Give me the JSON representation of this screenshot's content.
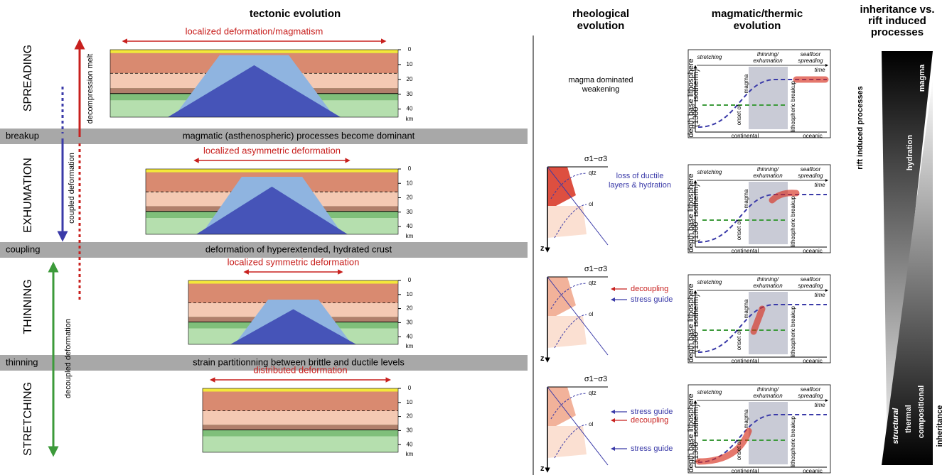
{
  "header": {
    "tectonic": "tectonic evolution",
    "rheological": [
      "rheological",
      "evolution"
    ],
    "thermal": [
      "magmatic/thermic",
      "evolution"
    ],
    "inheritance": [
      "inheritance vs.",
      "rift induced",
      "processes"
    ]
  },
  "stages": [
    "SPREADING",
    "EXHUMATION",
    "THINNING",
    "STRETCHING"
  ],
  "bands": [
    {
      "label": "breakup",
      "text": "magmatic (asthenospheric) processes become dominant"
    },
    {
      "label": "coupling",
      "text": "deformation of hyperextended, hydrated crust"
    },
    {
      "label": "thinning",
      "text": "strain partitionning between brittle and ductile levels"
    }
  ],
  "arrows": {
    "decompression": "decompression melt",
    "coupled": "coupled deformation",
    "decoupled": "decoupled deformation"
  },
  "sections": [
    {
      "title": "localized deformation/magmatism",
      "depths": [
        0,
        10,
        20,
        30,
        40
      ],
      "unit": "km"
    },
    {
      "title": "localized asymmetric deformation",
      "depths": [
        0,
        10,
        20,
        30,
        40
      ],
      "unit": "km"
    },
    {
      "title": "localized symmetric deformation",
      "depths": [
        0,
        10,
        20,
        30,
        40
      ],
      "unit": "km"
    },
    {
      "title": "distributed deformation",
      "depths": [
        0,
        10,
        20,
        30,
        40
      ],
      "unit": "km"
    }
  ],
  "rheology": {
    "top": [
      "magma dominated",
      "weakening"
    ],
    "panels": [
      {
        "stress": "σ1−σ3",
        "curves": [
          "qtz",
          "ol"
        ],
        "axis": "z",
        "notes": [
          {
            "lines": [
              "loss of ductile",
              "layers & hydration"
            ],
            "color": "#3a3aa8"
          }
        ]
      },
      {
        "stress": "σ1−σ3",
        "curves": [
          "qtz",
          "ol"
        ],
        "axis": "z",
        "notes": [
          {
            "lines": [
              "decoupling"
            ],
            "color": "#c8201e"
          },
          {
            "lines": [
              "stress guide"
            ],
            "color": "#3a3aa8"
          }
        ]
      },
      {
        "stress": "σ1−σ3",
        "curves": [
          "qtz",
          "ol"
        ],
        "axis": "z",
        "notes": [
          {
            "lines": [
              "stress guide"
            ],
            "color": "#3a3aa8"
          },
          {
            "lines": [
              "decoupling"
            ],
            "color": "#c8201e"
          },
          {
            "lines": [
              "stress guide"
            ],
            "color": "#3a3aa8"
          }
        ]
      }
    ]
  },
  "thermal": {
    "phases": [
      [
        "stretching"
      ],
      [
        "thinning/",
        "exhumation"
      ],
      [
        "seafloor",
        "spreading"
      ]
    ],
    "time": "time",
    "y_label": [
      "depth base lithosphere",
      "(1300° isotherm)"
    ],
    "magma": "magma",
    "onset": "onset of",
    "breakup": "lithospheric breakup",
    "continental": "continental",
    "oceanic": "oceanic"
  },
  "inheritance": {
    "rift_title": "rift induced processes",
    "rift": [
      "magma",
      "hydration"
    ],
    "inherited": [
      "structural",
      "thermal",
      "compositional"
    ],
    "inheritance_title": "inheritance"
  }
}
